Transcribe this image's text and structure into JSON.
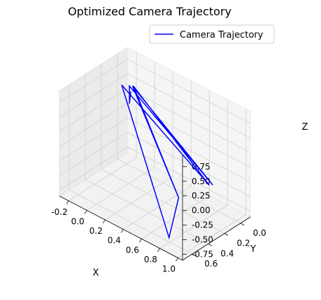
{
  "chart_data": {
    "type": "line",
    "projection": "3d",
    "title": "Optimized Camera Trajectory",
    "xlabel": "X",
    "ylabel": "Y",
    "zlabel": "Z",
    "xlim": [
      -0.3,
      1.05
    ],
    "ylim": [
      -0.12,
      0.72
    ],
    "zlim": [
      -0.85,
      0.95
    ],
    "x_ticks": [
      "-0.2",
      "0.0",
      "0.2",
      "0.4",
      "0.6",
      "0.8",
      "1.0"
    ],
    "y_ticks": [
      "0.0",
      "0.2",
      "0.4",
      "0.6"
    ],
    "z_ticks": [
      "-0.75",
      "-0.50",
      "-0.25",
      "0.00",
      "0.25",
      "0.50",
      "0.75"
    ],
    "grid": true,
    "legend": "upper right",
    "series": [
      {
        "name": "Camera Trajectory",
        "color": "#0000ff",
        "points": [
          {
            "x": 0.11,
            "y": 0.3,
            "z": 0.9
          },
          {
            "x": -0.17,
            "y": 0.0,
            "z": 0.2
          },
          {
            "x": -0.1,
            "y": 0.08,
            "z": 0.63
          },
          {
            "x": 0.93,
            "y": 0.21,
            "z": -0.11
          },
          {
            "x": -0.03,
            "y": 0.12,
            "z": 0.72
          },
          {
            "x": 0.44,
            "y": 0.08,
            "z": -0.84
          },
          {
            "x": 0.76,
            "y": 0.56,
            "z": -0.84
          },
          {
            "x": -0.14,
            "y": 0.13,
            "z": 0.66
          },
          {
            "x": 0.9,
            "y": 0.22,
            "z": -0.13
          },
          {
            "x": -0.02,
            "y": 0.12,
            "z": 0.73
          },
          {
            "x": 0.44,
            "y": 0.08,
            "z": -0.84
          }
        ]
      }
    ]
  }
}
